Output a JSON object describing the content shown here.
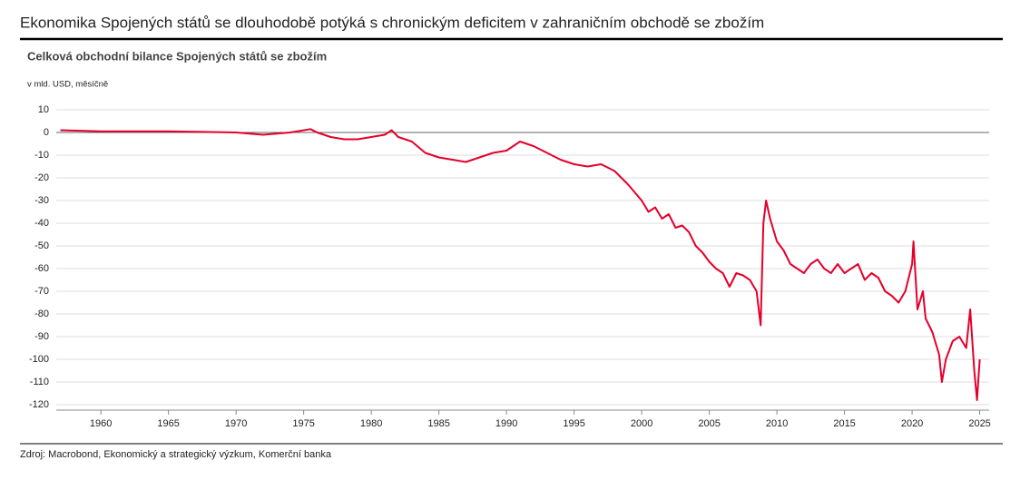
{
  "chart_data": {
    "type": "line",
    "title": "Ekonomika Spojených států se dlouhodobě potýká s chronickým deficitem v zahraničním obchodě se zbožím",
    "subtitle": "Celková obchodní bilance Spojených států se zbožím",
    "y_label": "v mld. USD, měsíčně",
    "source": "Zdroj: Macrobond, Ekonomický a strategický výzkum, Komerční banka",
    "x": [
      1957,
      1960,
      1965,
      1970,
      1972,
      1974,
      1975.5,
      1976,
      1977,
      1978,
      1979,
      1980,
      1981,
      1981.5,
      1982,
      1983,
      1984,
      1985,
      1986,
      1987,
      1988,
      1989,
      1990,
      1991,
      1992,
      1993,
      1994,
      1995,
      1996,
      1997,
      1998,
      1999,
      2000,
      2000.5,
      2001,
      2001.5,
      2002,
      2002.5,
      2003,
      2003.5,
      2004,
      2004.5,
      2005,
      2005.5,
      2006,
      2006.5,
      2007,
      2007.5,
      2008,
      2008.5,
      2008.8,
      2009,
      2009.2,
      2009.5,
      2010,
      2010.5,
      2011,
      2011.5,
      2012,
      2012.5,
      2013,
      2013.5,
      2014,
      2014.5,
      2015,
      2015.5,
      2016,
      2016.5,
      2017,
      2017.5,
      2018,
      2018.5,
      2019,
      2019.5,
      2020,
      2020.1,
      2020.4,
      2020.8,
      2021,
      2021.5,
      2022,
      2022.2,
      2022.5,
      2023,
      2023.5,
      2024,
      2024.3,
      2024.6,
      2024.8,
      2025
    ],
    "series": [
      {
        "name": "Obchodní bilance",
        "color": "#e4002b",
        "values": [
          1,
          0.5,
          0.5,
          0,
          -1,
          0,
          1.5,
          0,
          -2,
          -3,
          -3,
          -2,
          -1,
          1,
          -2,
          -4,
          -9,
          -11,
          -12,
          -13,
          -11,
          -9,
          -8,
          -4,
          -6,
          -9,
          -12,
          -14,
          -15,
          -14,
          -17,
          -23,
          -30,
          -35,
          -33,
          -38,
          -36,
          -42,
          -41,
          -44,
          -50,
          -53,
          -57,
          -60,
          -62,
          -68,
          -62,
          -63,
          -65,
          -70,
          -85,
          -40,
          -30,
          -38,
          -48,
          -52,
          -58,
          -60,
          -62,
          -58,
          -56,
          -60,
          -62,
          -58,
          -62,
          -60,
          -58,
          -65,
          -62,
          -64,
          -70,
          -72,
          -75,
          -70,
          -58,
          -48,
          -78,
          -70,
          -82,
          -88,
          -98,
          -110,
          -100,
          -92,
          -90,
          -95,
          -78,
          -105,
          -118,
          -100
        ]
      }
    ],
    "xlim": [
      1956.7,
      2025.7
    ],
    "ylim": [
      -120,
      10
    ],
    "xticks": [
      1960,
      1965,
      1970,
      1975,
      1980,
      1985,
      1990,
      1995,
      2000,
      2005,
      2010,
      2015,
      2020,
      2025
    ],
    "yticks": [
      10,
      0,
      -10,
      -20,
      -30,
      -40,
      -50,
      -60,
      -70,
      -80,
      -90,
      -100,
      -110,
      -120
    ],
    "grid": true
  }
}
